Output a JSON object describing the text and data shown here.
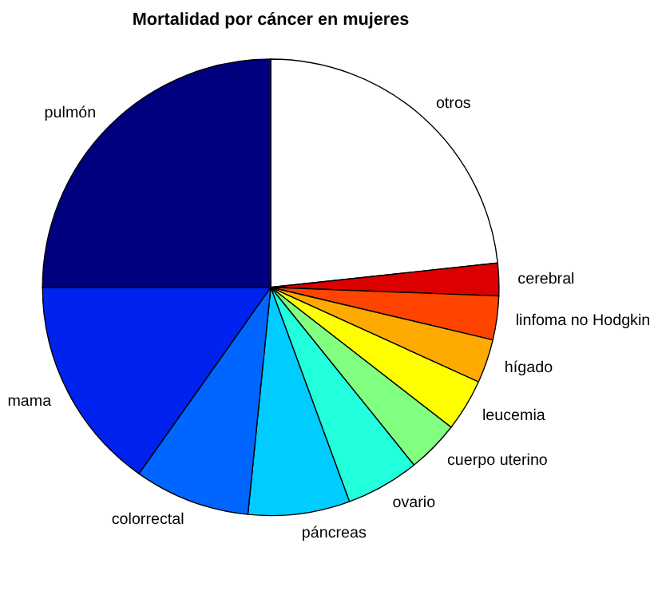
{
  "chart_data": {
    "type": "pie",
    "title": "Mortalidad por cáncer en mujeres",
    "categories": [
      "otros",
      "cerebral",
      "linfoma no Hodgkin",
      "hígado",
      "leucemia",
      "cuerpo uterino",
      "ovario",
      "páncreas",
      "colorrectal",
      "mama",
      "pulmón"
    ],
    "values": [
      23.3,
      2.3,
      3.1,
      3.1,
      3.7,
      3.7,
      5.2,
      7.2,
      8.2,
      15.2,
      25
    ],
    "colors": [
      "#ffffff",
      "#dd0000",
      "#ff4400",
      "#ffaa00",
      "#ffff00",
      "#80ff80",
      "#22ffdd",
      "#00ccff",
      "#0066ff",
      "#0022ee",
      "#00007f"
    ],
    "legend": false
  }
}
